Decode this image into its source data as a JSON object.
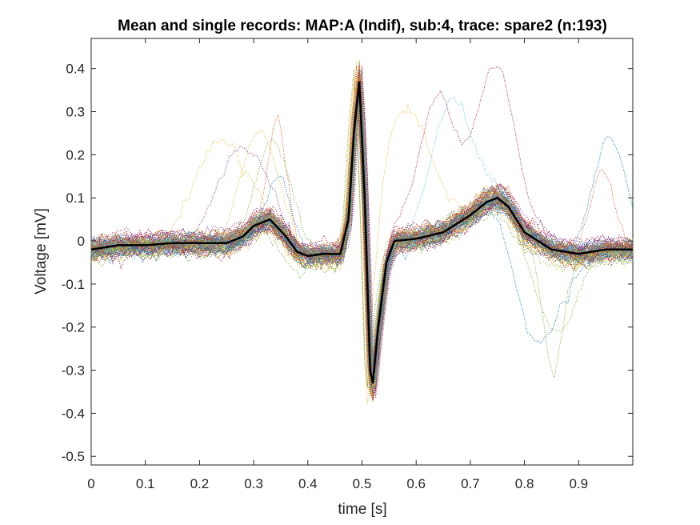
{
  "chart_data": {
    "type": "line",
    "title": "Mean and single records: MAP:A (Indif), sub:4, trace: spare2 (n:193)",
    "xlabel": "time [s]",
    "ylabel": "Voltage [mV]",
    "xlim": [
      0,
      1.0
    ],
    "ylim": [
      -0.52,
      0.47
    ],
    "x_ticks": [
      0,
      0.1,
      0.2,
      0.3,
      0.4,
      0.5,
      0.6,
      0.7,
      0.8,
      0.9
    ],
    "x_tick_labels": [
      "0",
      "0.1",
      "0.2",
      "0.3",
      "0.4",
      "0.5",
      "0.6",
      "0.7",
      "0.8",
      "0.9"
    ],
    "y_ticks": [
      0.4,
      0.3,
      0.2,
      0.1,
      0,
      -0.1,
      -0.2,
      -0.3,
      -0.4,
      -0.5
    ],
    "y_tick_labels": [
      "0.4",
      "0.3",
      "0.2",
      "0.1",
      "0",
      "-0.1",
      "-0.2",
      "-0.3",
      "-0.4",
      "-0.5"
    ],
    "grid": false,
    "box": true,
    "n_records": 193,
    "series": [
      {
        "role": "mean",
        "color": "#000000",
        "style": "solid",
        "x": [
          0,
          0.05,
          0.1,
          0.15,
          0.2,
          0.25,
          0.28,
          0.3,
          0.33,
          0.36,
          0.38,
          0.4,
          0.43,
          0.46,
          0.475,
          0.485,
          0.495,
          0.505,
          0.515,
          0.52,
          0.53,
          0.545,
          0.56,
          0.6,
          0.65,
          0.7,
          0.73,
          0.75,
          0.77,
          0.8,
          0.85,
          0.9,
          0.95,
          1.0
        ],
        "y": [
          -0.02,
          -0.01,
          -0.01,
          -0.005,
          -0.005,
          -0.005,
          0.01,
          0.035,
          0.05,
          0.01,
          -0.025,
          -0.035,
          -0.03,
          -0.03,
          0.05,
          0.25,
          0.37,
          0.1,
          -0.3,
          -0.33,
          -0.2,
          -0.05,
          0.0,
          0.005,
          0.02,
          0.06,
          0.09,
          0.1,
          0.08,
          0.02,
          -0.02,
          -0.03,
          -0.02,
          -0.02
        ]
      }
    ],
    "single_record_colors": [
      "#0072BD",
      "#D95319",
      "#EDB120",
      "#7E2F8E",
      "#77AC30",
      "#4DBEEE",
      "#A2142F"
    ],
    "single_record_style": "dotted"
  }
}
